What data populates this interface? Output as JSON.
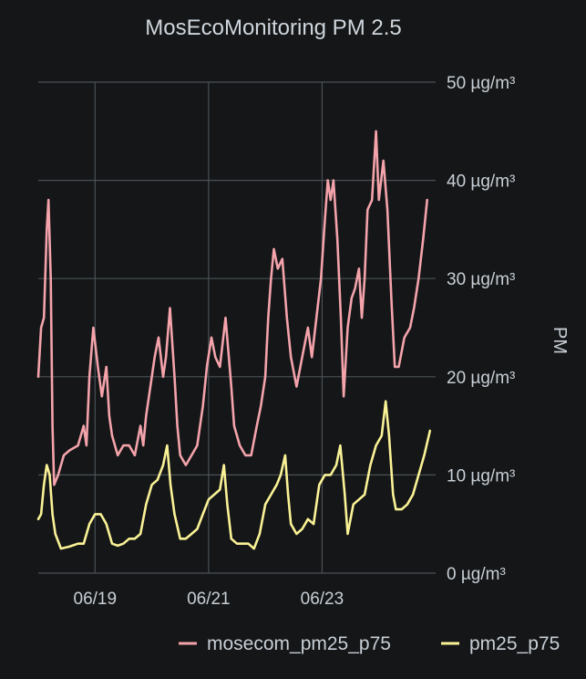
{
  "chart_data": {
    "type": "line",
    "title": "MosEcoMonitoring PM 2.5",
    "xlabel": "",
    "ylabel": "PM",
    "ylim": [
      0,
      50
    ],
    "y_ticks": [
      {
        "value": 0,
        "label": "0 µg/m³"
      },
      {
        "value": 10,
        "label": "10 µg/m³"
      },
      {
        "value": 20,
        "label": "20 µg/m³"
      },
      {
        "value": 30,
        "label": "30 µg/m³"
      },
      {
        "value": 40,
        "label": "40 µg/m³"
      },
      {
        "value": 50,
        "label": "50 µg/m³"
      }
    ],
    "x_unit": "days since 06/18 00:00",
    "xlim": [
      0,
      7
    ],
    "x_ticks": [
      {
        "value": 1,
        "label": "06/19"
      },
      {
        "value": 3,
        "label": "06/21"
      },
      {
        "value": 5,
        "label": "06/23"
      }
    ],
    "grid": true,
    "legend": "bottom",
    "series": [
      {
        "name": "mosecom_pm25_p75",
        "color": "#f4a3ab",
        "points": [
          [
            0.0,
            20
          ],
          [
            0.05,
            25
          ],
          [
            0.1,
            26
          ],
          [
            0.15,
            35
          ],
          [
            0.18,
            38
          ],
          [
            0.22,
            30
          ],
          [
            0.25,
            15
          ],
          [
            0.28,
            9
          ],
          [
            0.35,
            10
          ],
          [
            0.45,
            12
          ],
          [
            0.55,
            12.5
          ],
          [
            0.7,
            13
          ],
          [
            0.8,
            15
          ],
          [
            0.85,
            13
          ],
          [
            0.9,
            20
          ],
          [
            0.97,
            25
          ],
          [
            1.05,
            21
          ],
          [
            1.12,
            18
          ],
          [
            1.2,
            21
          ],
          [
            1.25,
            16
          ],
          [
            1.3,
            14
          ],
          [
            1.4,
            12
          ],
          [
            1.5,
            13
          ],
          [
            1.6,
            13
          ],
          [
            1.7,
            12
          ],
          [
            1.8,
            15
          ],
          [
            1.85,
            13
          ],
          [
            1.9,
            16
          ],
          [
            2.0,
            20
          ],
          [
            2.05,
            22
          ],
          [
            2.12,
            24
          ],
          [
            2.2,
            20
          ],
          [
            2.25,
            22
          ],
          [
            2.32,
            27
          ],
          [
            2.4,
            20
          ],
          [
            2.45,
            15
          ],
          [
            2.5,
            12
          ],
          [
            2.6,
            11
          ],
          [
            2.7,
            12
          ],
          [
            2.8,
            13
          ],
          [
            2.9,
            17
          ],
          [
            2.97,
            21
          ],
          [
            3.05,
            24
          ],
          [
            3.12,
            22
          ],
          [
            3.2,
            21
          ],
          [
            3.3,
            26
          ],
          [
            3.4,
            19
          ],
          [
            3.45,
            15
          ],
          [
            3.55,
            13
          ],
          [
            3.65,
            12
          ],
          [
            3.75,
            12
          ],
          [
            3.85,
            15
          ],
          [
            3.92,
            17
          ],
          [
            4.0,
            20
          ],
          [
            4.05,
            26
          ],
          [
            4.1,
            30
          ],
          [
            4.15,
            33
          ],
          [
            4.22,
            31
          ],
          [
            4.3,
            32
          ],
          [
            4.38,
            26
          ],
          [
            4.45,
            22
          ],
          [
            4.55,
            19
          ],
          [
            4.65,
            22
          ],
          [
            4.75,
            25
          ],
          [
            4.82,
            22
          ],
          [
            4.9,
            26
          ],
          [
            4.98,
            30
          ],
          [
            5.05,
            36
          ],
          [
            5.1,
            40
          ],
          [
            5.15,
            38
          ],
          [
            5.2,
            40
          ],
          [
            5.27,
            34
          ],
          [
            5.33,
            26
          ],
          [
            5.38,
            18
          ],
          [
            5.45,
            25
          ],
          [
            5.52,
            28
          ],
          [
            5.58,
            29
          ],
          [
            5.65,
            31
          ],
          [
            5.7,
            26
          ],
          [
            5.75,
            30
          ],
          [
            5.8,
            37
          ],
          [
            5.88,
            38
          ],
          [
            5.95,
            45
          ],
          [
            6.0,
            38
          ],
          [
            6.08,
            42
          ],
          [
            6.15,
            37
          ],
          [
            6.22,
            28
          ],
          [
            6.28,
            21
          ],
          [
            6.35,
            21
          ],
          [
            6.45,
            24
          ],
          [
            6.55,
            25
          ],
          [
            6.62,
            27
          ],
          [
            6.7,
            30
          ],
          [
            6.78,
            34
          ],
          [
            6.85,
            38
          ]
        ]
      },
      {
        "name": "pm25_p75",
        "color": "#faf296",
        "points": [
          [
            0.0,
            5.5
          ],
          [
            0.05,
            6
          ],
          [
            0.1,
            9
          ],
          [
            0.15,
            11
          ],
          [
            0.2,
            10
          ],
          [
            0.25,
            6
          ],
          [
            0.3,
            4
          ],
          [
            0.4,
            2.5
          ],
          [
            0.55,
            2.7
          ],
          [
            0.7,
            3
          ],
          [
            0.8,
            3
          ],
          [
            0.9,
            5
          ],
          [
            1.0,
            6
          ],
          [
            1.1,
            6
          ],
          [
            1.2,
            5
          ],
          [
            1.3,
            3
          ],
          [
            1.4,
            2.8
          ],
          [
            1.5,
            3
          ],
          [
            1.6,
            3.5
          ],
          [
            1.7,
            3.5
          ],
          [
            1.8,
            4
          ],
          [
            1.9,
            7
          ],
          [
            2.0,
            9
          ],
          [
            2.1,
            9.5
          ],
          [
            2.2,
            11
          ],
          [
            2.27,
            13
          ],
          [
            2.33,
            9
          ],
          [
            2.4,
            6
          ],
          [
            2.5,
            3.5
          ],
          [
            2.6,
            3.5
          ],
          [
            2.7,
            4
          ],
          [
            2.8,
            4.5
          ],
          [
            2.9,
            6
          ],
          [
            3.0,
            7.5
          ],
          [
            3.1,
            8
          ],
          [
            3.2,
            8.5
          ],
          [
            3.27,
            11
          ],
          [
            3.33,
            7
          ],
          [
            3.4,
            3.5
          ],
          [
            3.5,
            3
          ],
          [
            3.6,
            3
          ],
          [
            3.7,
            3
          ],
          [
            3.8,
            2.5
          ],
          [
            3.9,
            4
          ],
          [
            4.0,
            7
          ],
          [
            4.1,
            8
          ],
          [
            4.2,
            9
          ],
          [
            4.27,
            10
          ],
          [
            4.35,
            12
          ],
          [
            4.4,
            8
          ],
          [
            4.45,
            5
          ],
          [
            4.55,
            4
          ],
          [
            4.65,
            4.5
          ],
          [
            4.75,
            5.5
          ],
          [
            4.85,
            5
          ],
          [
            4.95,
            9
          ],
          [
            5.05,
            10
          ],
          [
            5.15,
            10
          ],
          [
            5.25,
            11
          ],
          [
            5.32,
            13
          ],
          [
            5.4,
            8
          ],
          [
            5.45,
            4
          ],
          [
            5.55,
            7
          ],
          [
            5.65,
            7.5
          ],
          [
            5.75,
            8
          ],
          [
            5.85,
            11
          ],
          [
            5.95,
            13
          ],
          [
            6.05,
            14
          ],
          [
            6.12,
            17.5
          ],
          [
            6.18,
            14
          ],
          [
            6.25,
            8
          ],
          [
            6.3,
            6.5
          ],
          [
            6.4,
            6.5
          ],
          [
            6.5,
            7
          ],
          [
            6.6,
            8
          ],
          [
            6.7,
            10
          ],
          [
            6.8,
            12
          ],
          [
            6.9,
            14.5
          ]
        ]
      }
    ]
  }
}
